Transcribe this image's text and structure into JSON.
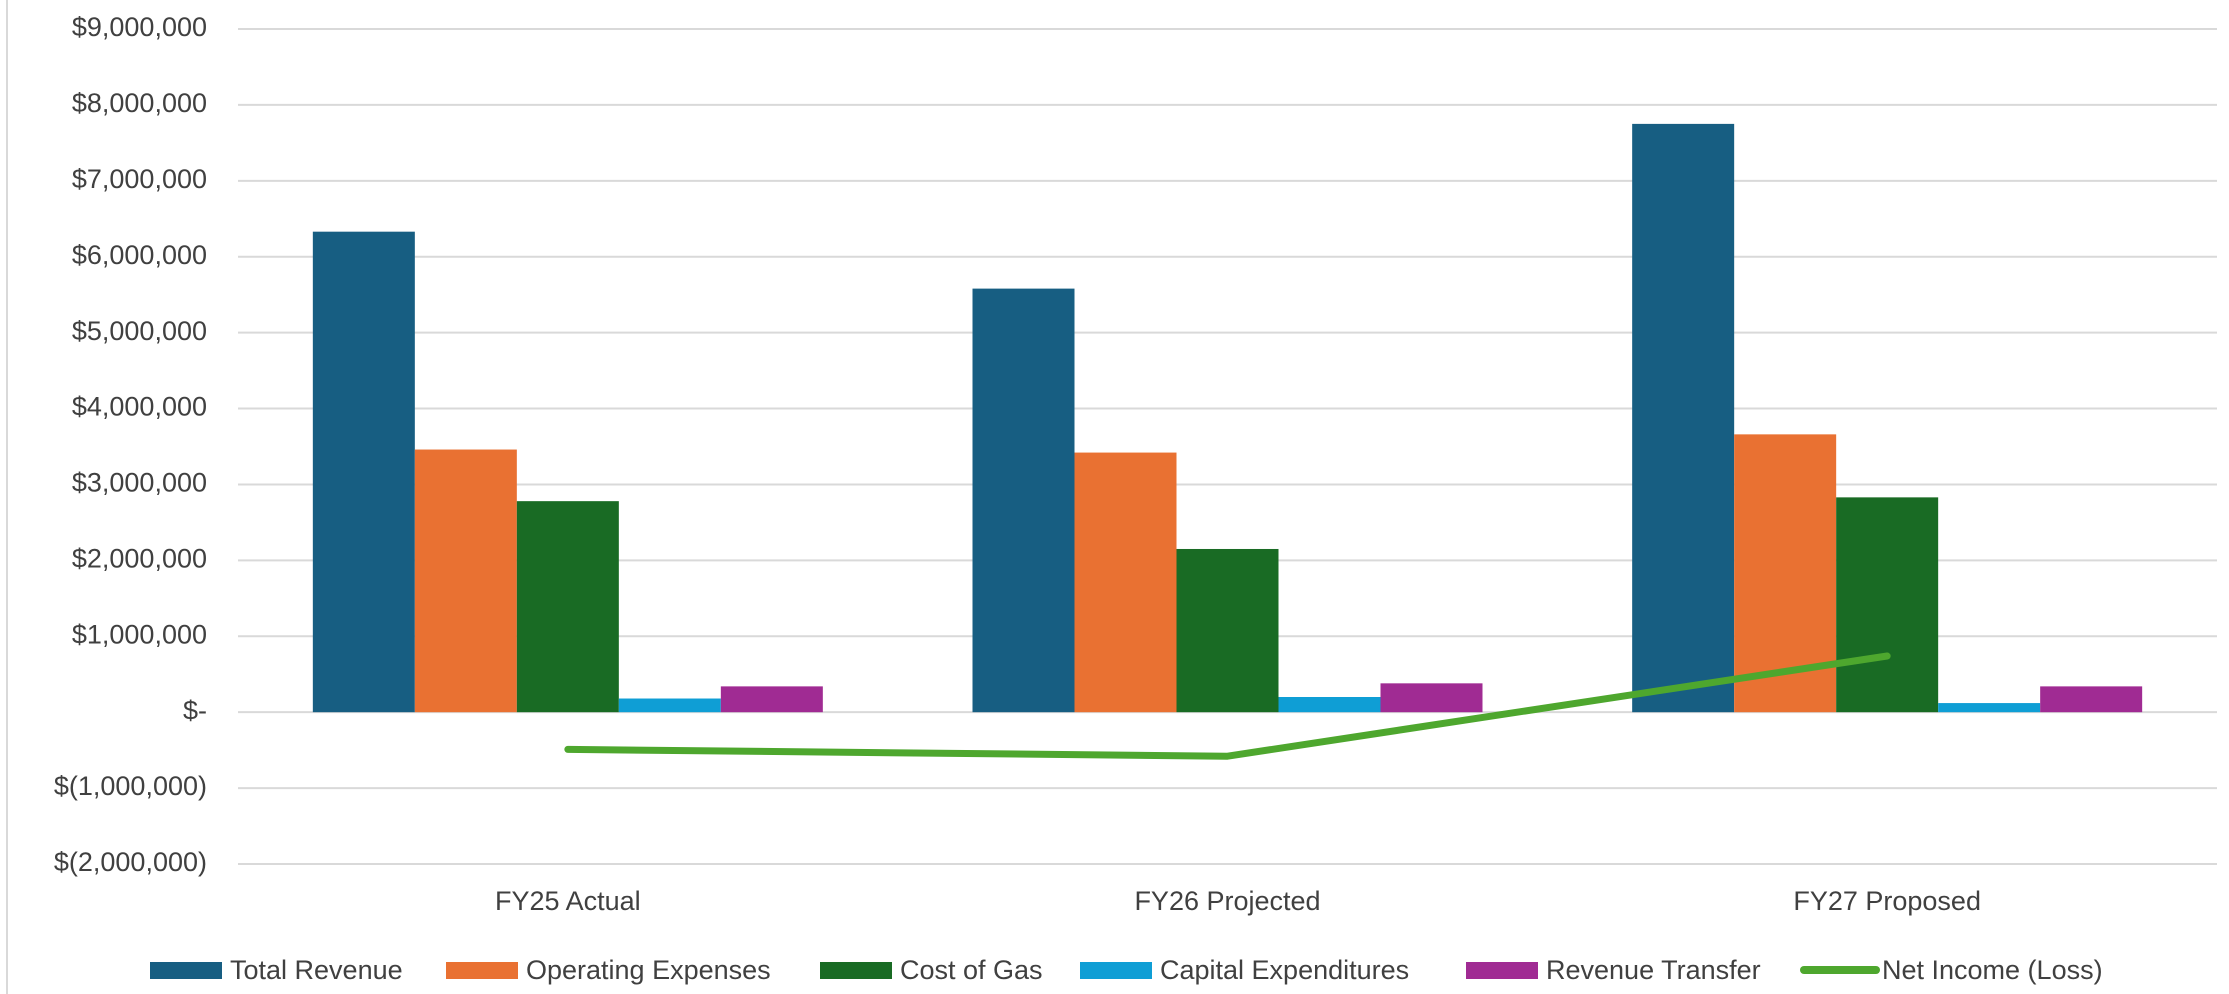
{
  "chart_data": {
    "type": "bar",
    "categories": [
      "FY25 Actual",
      "FY26 Projected",
      "FY27 Proposed"
    ],
    "series": [
      {
        "name": "Total Revenue",
        "type": "bar",
        "color": "#175e82",
        "values": [
          6330000,
          5580000,
          7750000
        ]
      },
      {
        "name": "Operating Expenses",
        "type": "bar",
        "color": "#e97132",
        "values": [
          3460000,
          3420000,
          3660000
        ]
      },
      {
        "name": "Cost of Gas",
        "type": "bar",
        "color": "#196b24",
        "values": [
          2780000,
          2150000,
          2830000
        ]
      },
      {
        "name": "Capital Expenditures",
        "type": "bar",
        "color": "#0f9ed5",
        "values": [
          180000,
          200000,
          120000
        ]
      },
      {
        "name": "Revenue Transfer",
        "type": "bar",
        "color": "#a02b93",
        "values": [
          340000,
          380000,
          340000
        ]
      },
      {
        "name": "Net Income (Loss)",
        "type": "line",
        "color": "#4ea72e",
        "values": [
          -490000,
          -580000,
          740000
        ]
      }
    ],
    "ylim": [
      -2000000,
      9000000
    ],
    "yticks": [
      9000000,
      8000000,
      7000000,
      6000000,
      5000000,
      4000000,
      3000000,
      2000000,
      1000000,
      0,
      -1000000,
      -2000000
    ],
    "ytick_labels": [
      "$9,000,000",
      "$8,000,000",
      "$7,000,000",
      "$6,000,000",
      "$5,000,000",
      "$4,000,000",
      "$3,000,000",
      "$2,000,000",
      "$1,000,000",
      "$-",
      "$(1,000,000)",
      "$(2,000,000)"
    ],
    "title": "",
    "xlabel": "",
    "ylabel": "",
    "grid": true,
    "legend_position": "bottom"
  }
}
